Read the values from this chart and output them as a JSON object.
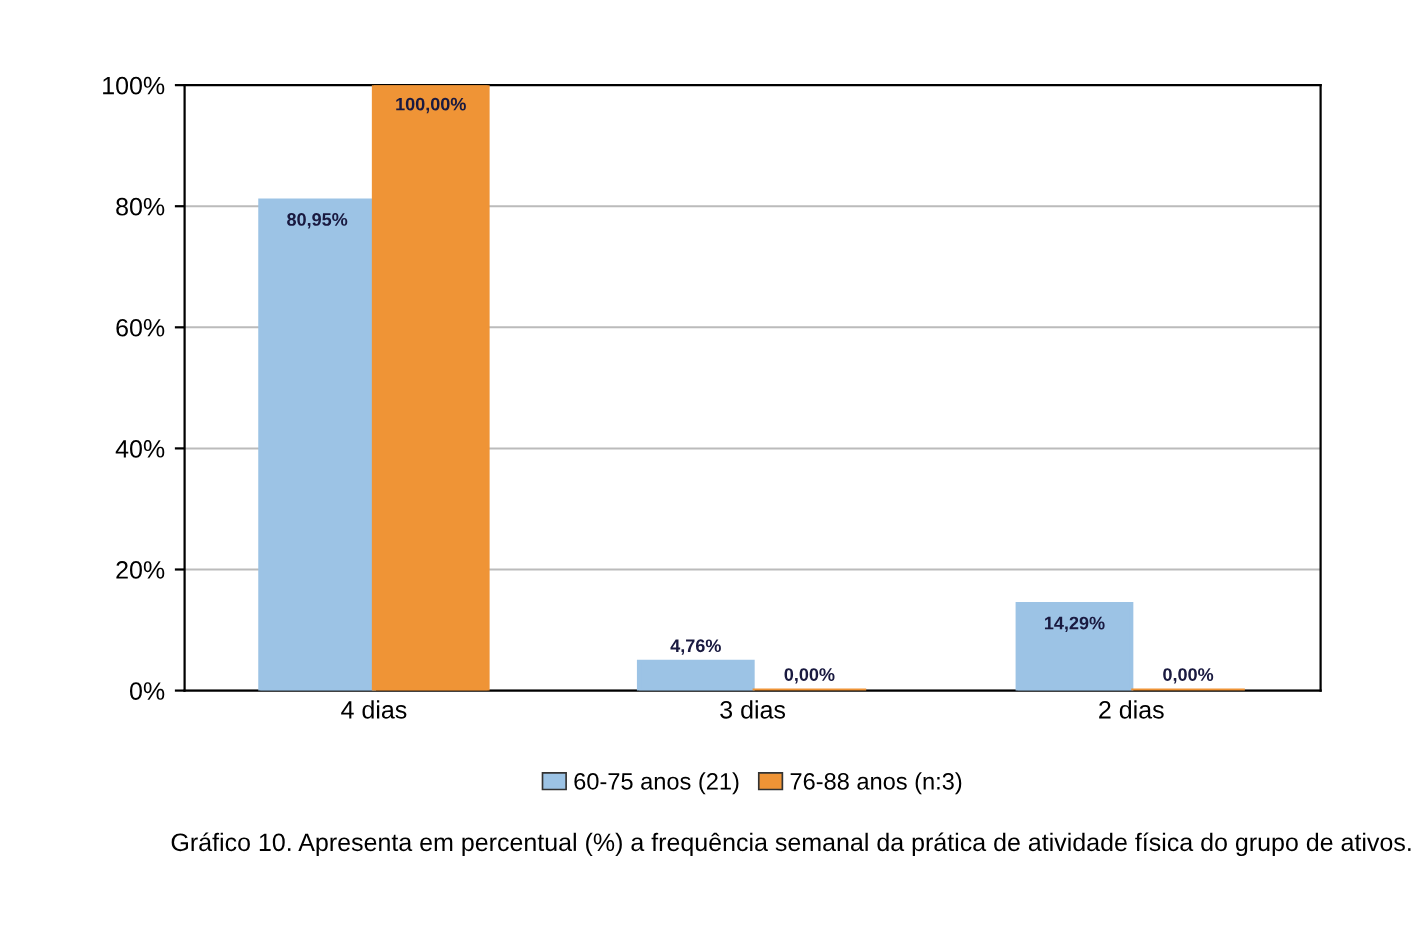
{
  "chart_data": {
    "type": "bar",
    "categories": [
      "4 dias",
      "3 dias",
      "2 dias"
    ],
    "series": [
      {
        "name": "60-75 anos (21)",
        "color": "#9cc3e5",
        "values": [
          80.95,
          4.76,
          14.29
        ],
        "value_labels": [
          "80,95%",
          "4,76%",
          "14,29%"
        ]
      },
      {
        "name": "76-88 anos (n:3)",
        "color": "#ef9436",
        "values": [
          100,
          0,
          0
        ],
        "value_labels": [
          "100,00%",
          "0,00%",
          "0,00%"
        ]
      }
    ],
    "ylim": [
      0,
      100
    ],
    "yticks": [
      {
        "value": 0,
        "label": "0%"
      },
      {
        "value": 20,
        "label": "20%"
      },
      {
        "value": 40,
        "label": "40%"
      },
      {
        "value": 60,
        "label": "60%"
      },
      {
        "value": 80,
        "label": "80%"
      },
      {
        "value": 100,
        "label": "100%"
      }
    ],
    "grid": "y",
    "legend": "bottom",
    "annotations": [
      "Gráfico 10. Apresenta em percentual (%) a frequência semanal da prática de atividade física do grupo de ativos."
    ]
  }
}
